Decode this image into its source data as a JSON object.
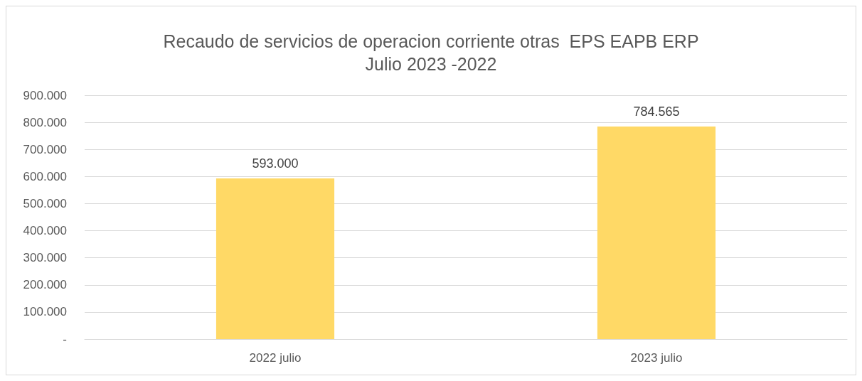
{
  "chart_data": {
    "type": "bar",
    "title": "Recaudo de servicios de operacion corriente otras  EPS EAPB ERP\nJulio 2023 -2022",
    "categories": [
      "2022 julio",
      "2023 julio"
    ],
    "values": [
      593000,
      784565
    ],
    "value_labels": [
      "593.000",
      "784.565"
    ],
    "color": "#ffd966",
    "ylim": [
      0,
      900000
    ],
    "yticks": [
      {
        "value": 0,
        "label": "-"
      },
      {
        "value": 100000,
        "label": "100.000"
      },
      {
        "value": 200000,
        "label": "200.000"
      },
      {
        "value": 300000,
        "label": "300.000"
      },
      {
        "value": 400000,
        "label": "400.000"
      },
      {
        "value": 500000,
        "label": "500.000"
      },
      {
        "value": 600000,
        "label": "600.000"
      },
      {
        "value": 700000,
        "label": "700.000"
      },
      {
        "value": 800000,
        "label": "800.000"
      },
      {
        "value": 900000,
        "label": "900.000"
      }
    ],
    "grid": "y"
  }
}
